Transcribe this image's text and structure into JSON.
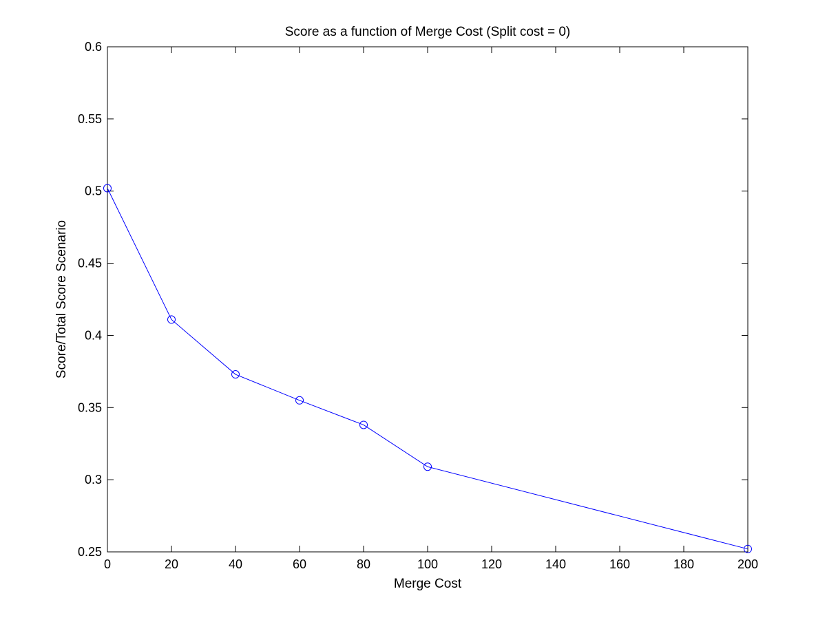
{
  "chart_data": {
    "type": "line",
    "title": "Score as a function of Merge Cost (Split cost = 0)",
    "xlabel": "Merge Cost",
    "ylabel": "Score/Total Score Scenario",
    "xlim": [
      0,
      200
    ],
    "ylim": [
      0.25,
      0.6
    ],
    "xticks": [
      0,
      20,
      40,
      60,
      80,
      100,
      120,
      140,
      160,
      180,
      200
    ],
    "yticks": [
      0.25,
      0.3,
      0.35,
      0.4,
      0.45,
      0.5,
      0.55,
      0.6
    ],
    "xtick_labels": [
      "0",
      "20",
      "40",
      "60",
      "80",
      "100",
      "120",
      "140",
      "160",
      "180",
      "200"
    ],
    "ytick_labels": [
      "0.25",
      "0.3",
      "0.35",
      "0.4",
      "0.45",
      "0.5",
      "0.55",
      "0.6"
    ],
    "grid": false,
    "legend": "none",
    "marker": "circle-open",
    "series": [
      {
        "color": "#0000ff",
        "x": [
          0,
          20,
          40,
          60,
          80,
          100,
          200
        ],
        "y": [
          0.502,
          0.411,
          0.373,
          0.355,
          0.338,
          0.309,
          0.252
        ]
      }
    ]
  }
}
